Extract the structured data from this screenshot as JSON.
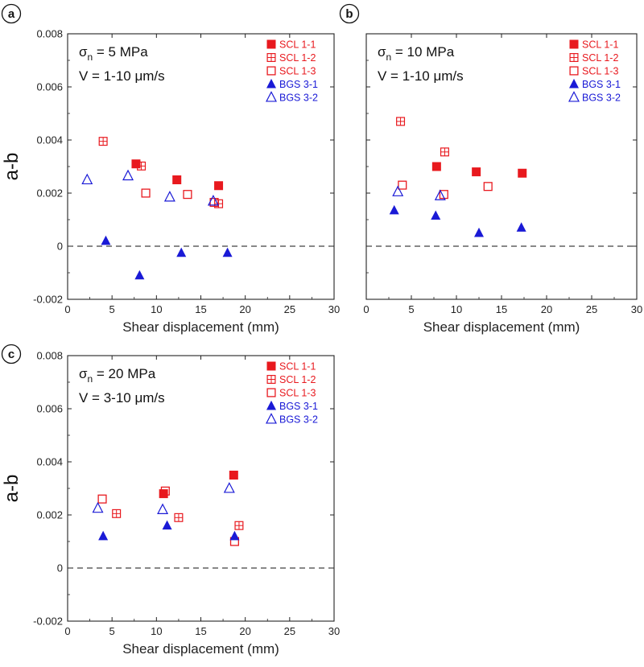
{
  "colors": {
    "scl": "#e8191e",
    "bgs": "#1a1ad6",
    "axis": "#222222"
  },
  "legend_entries": [
    {
      "key": "scl11",
      "label": "SCL 1-1",
      "marker": "filled-square",
      "color": "#e8191e"
    },
    {
      "key": "scl12",
      "label": "SCL 1-2",
      "marker": "crossed-square",
      "color": "#e8191e"
    },
    {
      "key": "scl13",
      "label": "SCL 1-3",
      "marker": "open-square",
      "color": "#e8191e"
    },
    {
      "key": "bgs31",
      "label": "BGS 3-1",
      "marker": "filled-triangle",
      "color": "#1a1ad6"
    },
    {
      "key": "bgs32",
      "label": "BGS 3-2",
      "marker": "open-triangle",
      "color": "#1a1ad6"
    }
  ],
  "chart_data": [
    {
      "type": "scatter",
      "panel": "a",
      "sigma": "σ",
      "sigma_sub": "n",
      "sigma_value": " = 5 MPa",
      "velocity": "V = 1-10 μm/s",
      "xlabel": "Shear displacement (mm)",
      "ylabel": "a-b",
      "show_ylabel": true,
      "xlim": [
        0,
        30
      ],
      "ylim": [
        -0.002,
        0.008
      ],
      "xticks": [
        "0",
        "5",
        "10",
        "15",
        "20",
        "25",
        "30"
      ],
      "yticks": [
        "-0.002",
        "0",
        "0.002",
        "0.004",
        "0.006",
        "0.008"
      ],
      "reference_line": 0,
      "series": [
        {
          "key": "scl11",
          "name": "SCL 1-1",
          "points": [
            [
              7.7,
              0.0031
            ],
            [
              12.3,
              0.0025
            ],
            [
              17.0,
              0.00228
            ]
          ]
        },
        {
          "key": "scl12",
          "name": "SCL 1-2",
          "points": [
            [
              4.0,
              0.00395
            ],
            [
              8.3,
              0.00302
            ],
            [
              17.0,
              0.0016
            ]
          ]
        },
        {
          "key": "scl13",
          "name": "SCL 1-3",
          "points": [
            [
              8.8,
              0.002
            ],
            [
              13.5,
              0.00195
            ],
            [
              16.5,
              0.00165
            ]
          ]
        },
        {
          "key": "bgs31",
          "name": "BGS 3-1",
          "points": [
            [
              4.3,
              0.0002
            ],
            [
              8.1,
              -0.0011
            ],
            [
              12.8,
              -0.00025
            ],
            [
              18.0,
              -0.00025
            ]
          ]
        },
        {
          "key": "bgs32",
          "name": "BGS 3-2",
          "points": [
            [
              2.2,
              0.0025
            ],
            [
              6.8,
              0.00265
            ],
            [
              11.5,
              0.00185
            ],
            [
              16.4,
              0.0017
            ]
          ]
        }
      ]
    },
    {
      "type": "scatter",
      "panel": "b",
      "sigma": "σ",
      "sigma_sub": "n",
      "sigma_value": " = 10 MPa",
      "velocity": "V = 1-10 μm/s",
      "xlabel": "Shear displacement (mm)",
      "ylabel": "",
      "show_ylabel": false,
      "xlim": [
        0,
        30
      ],
      "ylim": [
        -0.002,
        0.008
      ],
      "xticks": [
        "0",
        "5",
        "10",
        "15",
        "20",
        "25",
        "30"
      ],
      "yticks": [],
      "reference_line": 0,
      "series": [
        {
          "key": "scl11",
          "name": "SCL 1-1",
          "points": [
            [
              7.8,
              0.003
            ],
            [
              12.2,
              0.0028
            ],
            [
              17.3,
              0.00275
            ]
          ]
        },
        {
          "key": "scl12",
          "name": "SCL 1-2",
          "points": [
            [
              3.8,
              0.0047
            ],
            [
              8.7,
              0.00355
            ]
          ]
        },
        {
          "key": "scl13",
          "name": "SCL 1-3",
          "points": [
            [
              4.0,
              0.0023
            ],
            [
              8.6,
              0.00195
            ],
            [
              13.5,
              0.00225
            ]
          ]
        },
        {
          "key": "bgs31",
          "name": "BGS 3-1",
          "points": [
            [
              3.1,
              0.00135
            ],
            [
              7.7,
              0.00115
            ],
            [
              12.5,
              0.0005
            ],
            [
              17.2,
              0.0007
            ]
          ]
        },
        {
          "key": "bgs32",
          "name": "BGS 3-2",
          "points": [
            [
              3.5,
              0.00205
            ],
            [
              8.2,
              0.0019
            ]
          ]
        }
      ]
    },
    {
      "type": "scatter",
      "panel": "c",
      "sigma": "σ",
      "sigma_sub": "n",
      "sigma_value": " = 20 MPa",
      "velocity": "V = 3-10 μm/s",
      "xlabel": "Shear displacement (mm)",
      "ylabel": "a-b",
      "show_ylabel": true,
      "xlim": [
        0,
        30
      ],
      "ylim": [
        -0.002,
        0.008
      ],
      "xticks": [
        "0",
        "5",
        "10",
        "15",
        "20",
        "25",
        "30"
      ],
      "yticks": [
        "-0.002",
        "0",
        "0.002",
        "0.004",
        "0.006",
        "0.008"
      ],
      "reference_line": 0,
      "series": [
        {
          "key": "scl11",
          "name": "SCL 1-1",
          "points": [
            [
              10.8,
              0.0028
            ],
            [
              18.7,
              0.0035
            ]
          ]
        },
        {
          "key": "scl12",
          "name": "SCL 1-2",
          "points": [
            [
              5.5,
              0.00205
            ],
            [
              12.5,
              0.0019
            ],
            [
              19.3,
              0.0016
            ]
          ]
        },
        {
          "key": "scl13",
          "name": "SCL 1-3",
          "points": [
            [
              3.9,
              0.0026
            ],
            [
              11.0,
              0.0029
            ],
            [
              18.8,
              0.001
            ]
          ]
        },
        {
          "key": "bgs31",
          "name": "BGS 3-1",
          "points": [
            [
              4.0,
              0.0012
            ],
            [
              11.2,
              0.0016
            ],
            [
              18.8,
              0.0012
            ]
          ]
        },
        {
          "key": "bgs32",
          "name": "BGS 3-2",
          "points": [
            [
              3.4,
              0.00225
            ],
            [
              10.7,
              0.0022
            ],
            [
              18.2,
              0.003
            ]
          ]
        }
      ]
    }
  ]
}
